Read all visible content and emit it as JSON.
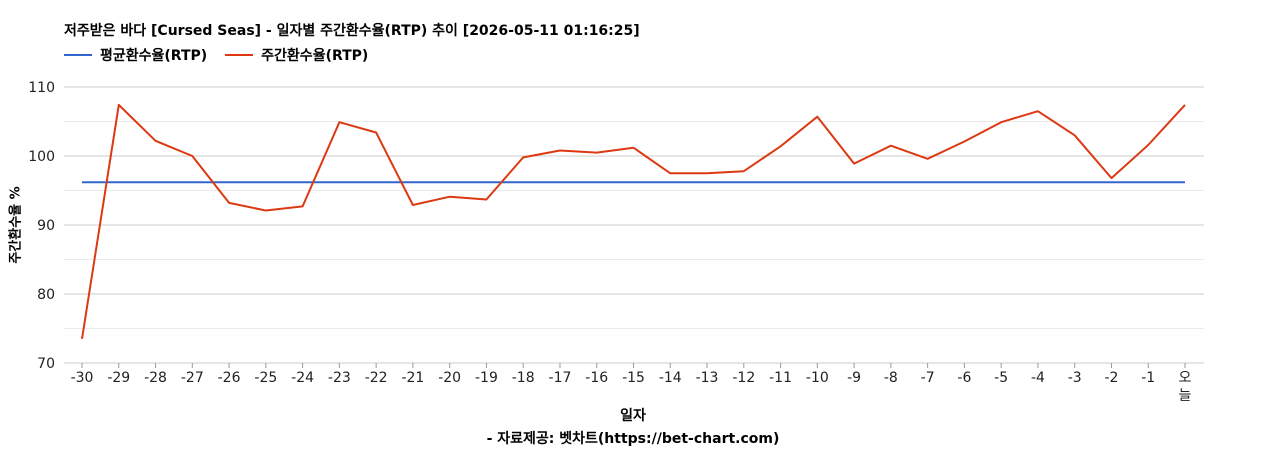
{
  "chart_data": {
    "type": "line",
    "title": "저주받은 바다 [Cursed Seas] - 일자별 주간환수율(RTP) 추이 [2026-05-11 01:16:25]",
    "xlabel": "일자",
    "ylabel": "주간환수율 %",
    "source": "- 자료제공: 벳차트(https://bet-chart.com)",
    "ylim": [
      70,
      110
    ],
    "yticks": [
      70,
      80,
      90,
      100,
      110
    ],
    "grid": true,
    "legend_position": "top-left",
    "categories": [
      "-30",
      "-29",
      "-28",
      "-27",
      "-26",
      "-25",
      "-24",
      "-23",
      "-22",
      "-21",
      "-20",
      "-19",
      "-18",
      "-17",
      "-16",
      "-15",
      "-14",
      "-13",
      "-12",
      "-11",
      "-10",
      "-9",
      "-8",
      "-7",
      "-6",
      "-5",
      "-4",
      "-3",
      "-2",
      "-1",
      "오늘"
    ],
    "series": [
      {
        "name": "평균환수율(RTP)",
        "color": "#3366cc",
        "values": [
          96.2,
          96.2,
          96.2,
          96.2,
          96.2,
          96.2,
          96.2,
          96.2,
          96.2,
          96.2,
          96.2,
          96.2,
          96.2,
          96.2,
          96.2,
          96.2,
          96.2,
          96.2,
          96.2,
          96.2,
          96.2,
          96.2,
          96.2,
          96.2,
          96.2,
          96.2,
          96.2,
          96.2,
          96.2,
          96.2,
          96.2
        ]
      },
      {
        "name": "주간환수율(RTP)",
        "color": "#dc3912",
        "values": [
          73.5,
          107.4,
          102.2,
          100.0,
          93.2,
          92.1,
          92.7,
          104.9,
          103.4,
          92.9,
          94.1,
          93.7,
          99.8,
          100.8,
          100.5,
          101.2,
          97.5,
          97.5,
          97.8,
          101.4,
          105.7,
          98.9,
          101.5,
          99.6,
          102.1,
          104.9,
          106.5,
          103.0,
          96.8,
          101.6,
          107.4
        ]
      }
    ]
  }
}
